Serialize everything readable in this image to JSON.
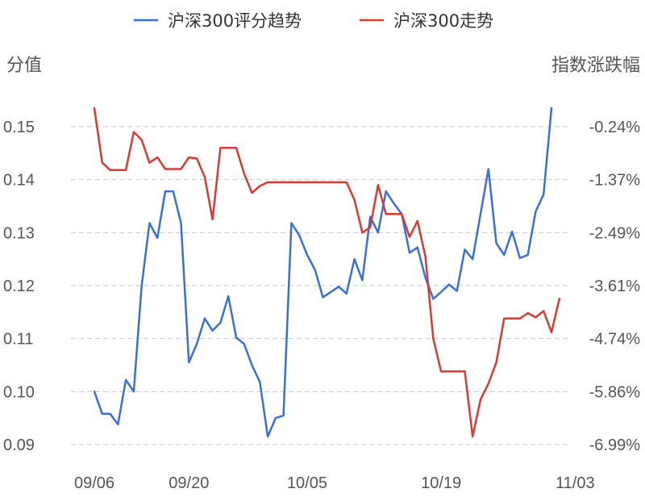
{
  "chart_data": {
    "type": "line",
    "legend_position": "top",
    "grid": true,
    "ylabel_left": "分值",
    "ylabel_right": "指数涨跌幅",
    "y_left_range": [
      0.09,
      0.15
    ],
    "y_left_ticks": [
      "0.09",
      "0.10",
      "0.11",
      "0.12",
      "0.13",
      "0.14",
      "0.15"
    ],
    "y_right_range": [
      -6.99,
      -0.24
    ],
    "y_right_ticks": [
      "-6.99%",
      "-5.86%",
      "-4.74%",
      "-3.61%",
      "-2.49%",
      "-1.37%",
      "-0.24%"
    ],
    "x_tick_labels": [
      "09/06",
      "09/20",
      "10/05",
      "10/19",
      "11/03"
    ],
    "x_tick_index": [
      0,
      12,
      27,
      44,
      61
    ],
    "series": [
      {
        "name": "沪深300评分趋势",
        "axis": "left",
        "color": "#3a6fd8",
        "values": [
          0.1,
          0.0958,
          0.0958,
          0.0938,
          0.1022,
          0.1,
          0.12,
          0.1318,
          0.129,
          0.1378,
          0.1378,
          0.1318,
          0.1055,
          0.109,
          0.1138,
          0.1115,
          0.113,
          0.118,
          0.1102,
          0.109,
          0.105,
          0.1018,
          0.0915,
          0.095,
          0.0955,
          0.1318,
          0.1295,
          0.1258,
          0.123,
          0.1178,
          0.1188,
          0.1198,
          0.1185,
          0.125,
          0.121,
          0.133,
          0.13,
          0.1378,
          0.1355,
          0.1335,
          0.1262,
          0.1272,
          0.1215,
          0.1175,
          0.1188,
          0.1202,
          0.119,
          0.1268,
          0.125,
          0.1335,
          0.142,
          0.128,
          0.1258,
          0.1302,
          0.1252,
          0.1258,
          0.134,
          0.1372,
          0.1535
        ]
      },
      {
        "name": "沪深300走势",
        "axis": "right",
        "color": "#d93a32",
        "values": [
          0.1535,
          0.1432,
          0.1418,
          0.1418,
          0.1418,
          0.149,
          0.1475,
          0.1432,
          0.1442,
          0.142,
          0.142,
          0.142,
          0.1442,
          0.144,
          0.1405,
          0.1325,
          0.146,
          0.146,
          0.146,
          0.1412,
          0.1375,
          0.1388,
          0.1395,
          0.1395,
          0.1395,
          0.1395,
          0.1395,
          0.1395,
          0.1395,
          0.1395,
          0.1395,
          0.1395,
          0.1395,
          0.1362,
          0.13,
          0.131,
          0.139,
          0.1335,
          0.1335,
          0.1335,
          0.1292,
          0.1322,
          0.1255,
          0.11,
          0.1038,
          0.1038,
          0.1038,
          0.1038,
          0.0915,
          0.0985,
          0.1015,
          0.1055,
          0.1138,
          0.1138,
          0.1138,
          0.1148,
          0.114,
          0.1152,
          0.1112,
          0.1175
        ]
      }
    ]
  }
}
